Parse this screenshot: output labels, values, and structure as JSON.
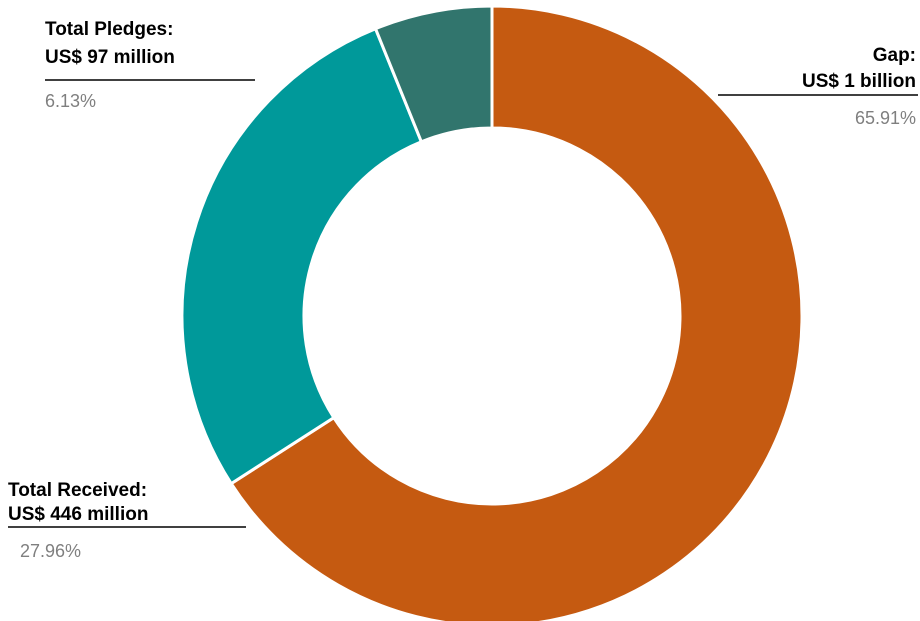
{
  "chart_data": {
    "type": "pie",
    "variant": "donut",
    "title": "",
    "start": "top-clockwise",
    "slices": [
      {
        "name": "Gap",
        "line1": "Gap:",
        "line2": "US$ 1 billion",
        "percent_label": "65.91%",
        "value": 65.91,
        "color": "#C55A11"
      },
      {
        "name": "Total Received",
        "line1": "Total Received:",
        "line2": "US$ 446 million",
        "percent_label": "27.96%",
        "value": 27.96,
        "color": "#00999A"
      },
      {
        "name": "Total Pledges",
        "line1": "Total Pledges:",
        "line2": "US$ 97 million",
        "percent_label": "6.13%",
        "value": 6.13,
        "color": "#31756D"
      }
    ],
    "legend": "none"
  }
}
